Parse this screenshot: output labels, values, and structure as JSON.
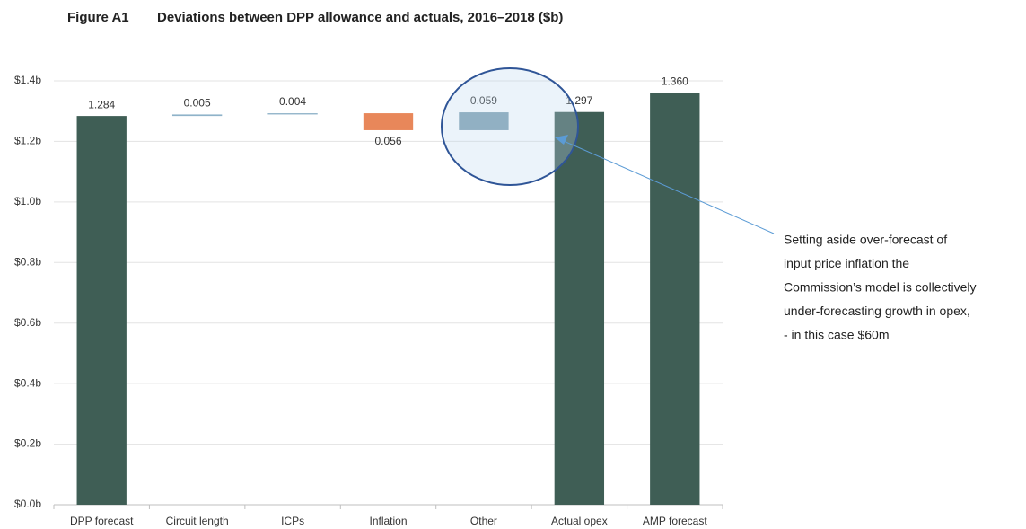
{
  "chart_data": {
    "type": "waterfall",
    "figure_label": "Figure A1",
    "title": "Deviations between DPP allowance and actuals, 2016–2018 ($b)",
    "categories": [
      "DPP forecast",
      "Circuit length",
      "ICPs",
      "Inflation",
      "Other",
      "Actual opex",
      "AMP forecast"
    ],
    "values": [
      1.284,
      0.005,
      0.004,
      -0.056,
      0.059,
      1.297,
      1.36
    ],
    "value_labels": [
      "1.284",
      "0.005",
      "0.004",
      "0.056",
      "0.059",
      "1.297",
      "1.360"
    ],
    "measure": [
      "total",
      "relative",
      "relative",
      "relative",
      "relative",
      "total",
      "total"
    ],
    "colors": [
      "#3f5e55",
      "#8fb3c9",
      "#8fb3c9",
      "#e8875a",
      "#7f9fb0",
      "#3f5e55",
      "#3f5e55"
    ],
    "ylim": [
      0,
      1.4
    ],
    "yticks": [
      {
        "value": 0,
        "label": "$0.0b"
      },
      {
        "value": 0.2,
        "label": "$0.2b"
      },
      {
        "value": 0.4,
        "label": "$0.4b"
      },
      {
        "value": 0.6,
        "label": "$0.6b"
      },
      {
        "value": 0.8,
        "label": "$0.8b"
      },
      {
        "value": 1.0,
        "label": "$1.0b"
      },
      {
        "value": 1.2,
        "label": "$1.2b"
      },
      {
        "value": 1.4,
        "label": "$1.4b"
      }
    ],
    "grid": true,
    "annotation": [
      "Setting aside over-forecast of",
      "input price inflation the",
      "Commission’s model is collectively",
      "under-forecasting growth in opex,",
      "- in this case $60m"
    ]
  }
}
